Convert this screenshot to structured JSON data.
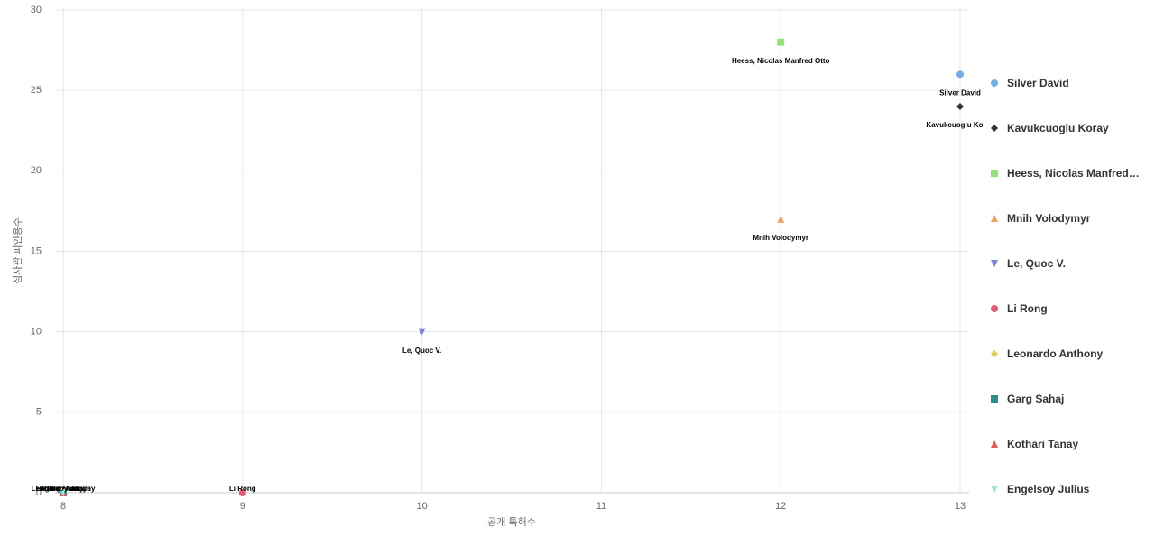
{
  "chart_data": {
    "type": "scatter",
    "x_label": "공개 특허수",
    "y_label": "심사관 피인용수",
    "xlim": [
      8,
      13
    ],
    "xticks": [
      8,
      9,
      10,
      11,
      12,
      13
    ],
    "ylim": [
      0,
      30
    ],
    "yticks": [
      0,
      5,
      10,
      15,
      20,
      25,
      30
    ],
    "grid": true,
    "series": [
      {
        "name": "Silver David",
        "color": "#73aeea",
        "marker": "circle",
        "x": [
          13
        ],
        "values": [
          26
        ]
      },
      {
        "name": "Kavukcuoglu Koray",
        "color": "#333333",
        "marker": "diamond",
        "x": [
          13
        ],
        "values": [
          24
        ]
      },
      {
        "name": "Heess, Nicolas Manfred Otto",
        "color": "#90e37c",
        "marker": "square",
        "x": [
          12
        ],
        "values": [
          28
        ]
      },
      {
        "name": "Mnih Volodymyr",
        "color": "#f5a35c",
        "marker": "triangle",
        "x": [
          12
        ],
        "values": [
          17
        ]
      },
      {
        "name": "Le, Quoc V.",
        "color": "#7d80dc",
        "marker": "triangle-down",
        "x": [
          10
        ],
        "values": [
          10
        ]
      },
      {
        "name": "Li Rong",
        "color": "#e8577a",
        "marker": "circle",
        "x": [
          9
        ],
        "values": [
          0
        ]
      },
      {
        "name": "Leonardo Anthony",
        "color": "#e6cd4e",
        "marker": "diamond",
        "x": [
          8
        ],
        "values": [
          0
        ]
      },
      {
        "name": "Garg Sahaj",
        "color": "#2b8f87",
        "marker": "square",
        "x": [
          8
        ],
        "values": [
          0
        ]
      },
      {
        "name": "Kothari Tanay",
        "color": "#e65757",
        "marker": "triangle",
        "x": [
          8
        ],
        "values": [
          0
        ]
      },
      {
        "name": "Engelsoy Julius",
        "color": "#98e2e2",
        "marker": "triangle-down",
        "x": [
          8
        ],
        "values": [
          0
        ]
      }
    ]
  }
}
